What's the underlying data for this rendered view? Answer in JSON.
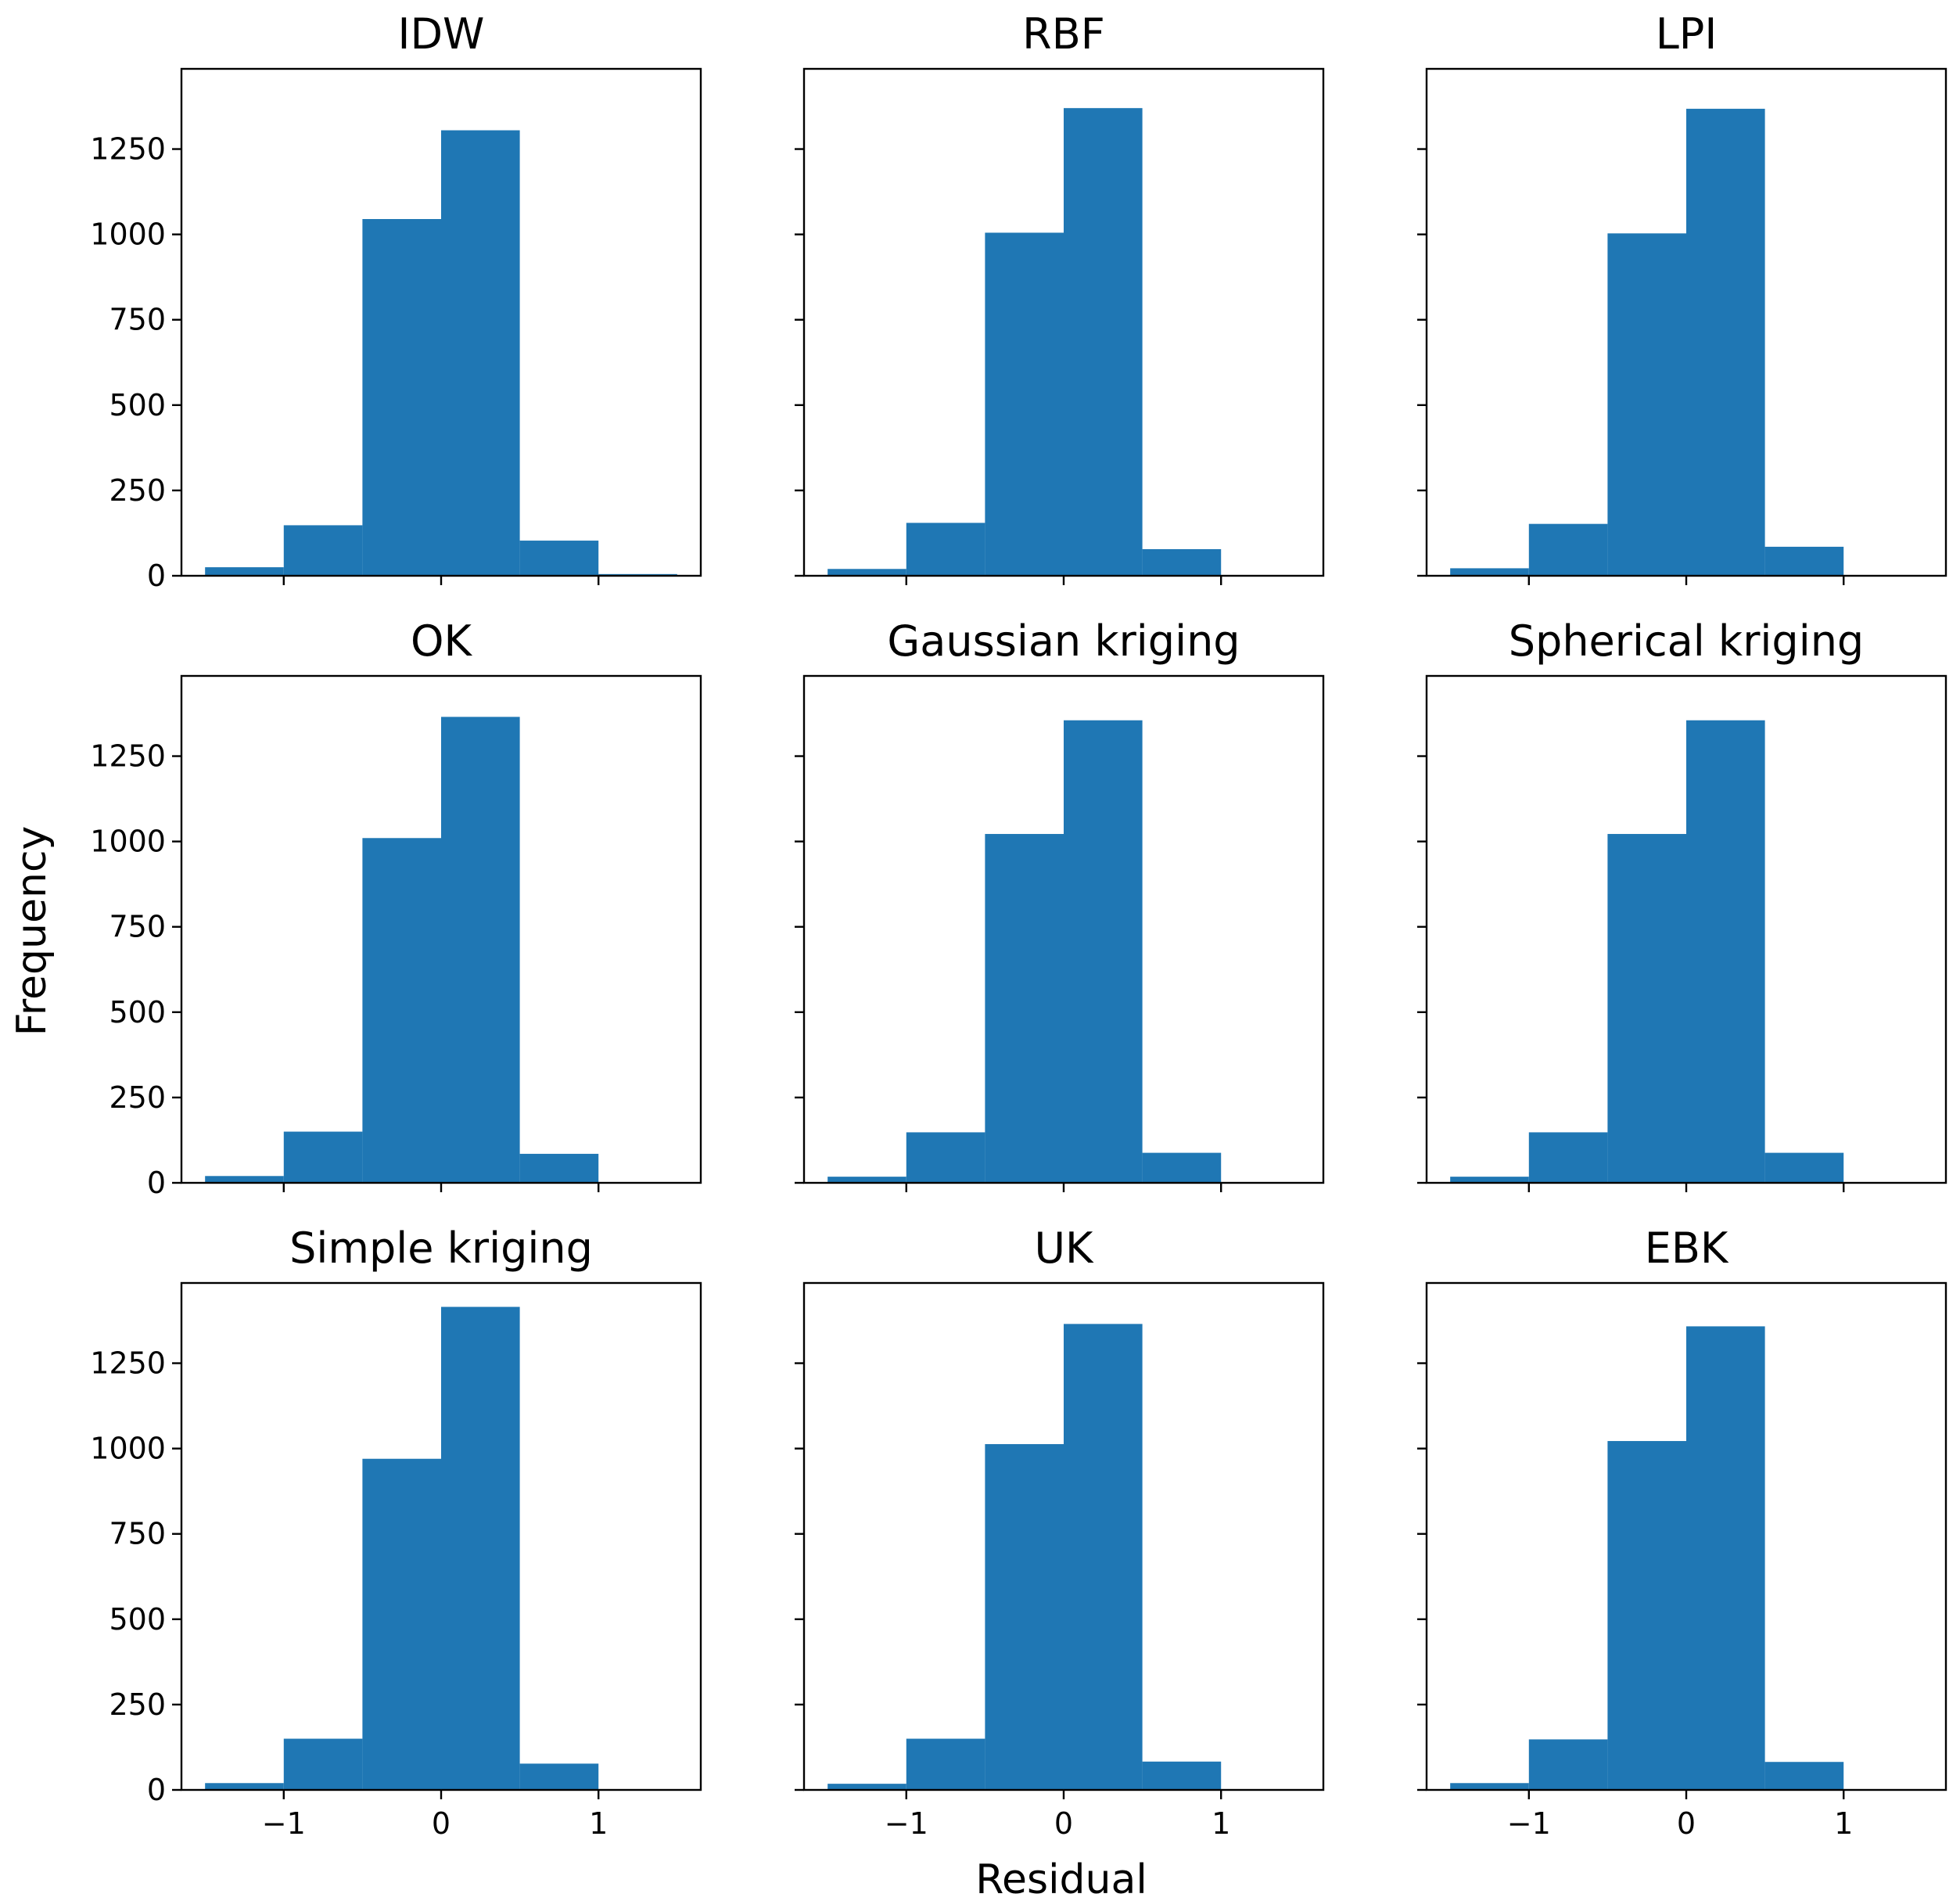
{
  "figure": {
    "ylabel": "Frequency",
    "xlabel": "Residual",
    "bar_color": "#1f77b4"
  },
  "chart_data": [
    {
      "type": "bar",
      "title": "IDW",
      "bin_edges": [
        -1.5,
        -1.0,
        -0.5,
        0.0,
        0.5,
        1.0,
        1.5
      ],
      "values": [
        25,
        148,
        1045,
        1305,
        103,
        5
      ],
      "xlim": [
        -1.65,
        1.65
      ],
      "ylim": [
        0,
        1485
      ],
      "xticks": [
        -1,
        0,
        1
      ],
      "xtick_labels": [
        "−1",
        "0",
        "1"
      ],
      "yticks": [
        0,
        250,
        500,
        750,
        1000,
        1250
      ],
      "ytick_labels": [
        "0",
        "250",
        "500",
        "750",
        "1000",
        "1250"
      ]
    },
    {
      "type": "bar",
      "title": "RBF",
      "bin_edges": [
        -1.5,
        -1.0,
        -0.5,
        0.0,
        0.5,
        1.0,
        1.5
      ],
      "values": [
        20,
        155,
        1005,
        1370,
        78,
        0
      ],
      "xlim": [
        -1.65,
        1.65
      ],
      "ylim": [
        0,
        1485
      ],
      "xticks": [
        -1,
        0,
        1
      ],
      "xtick_labels": [
        "−1",
        "0",
        "1"
      ],
      "yticks": [
        0,
        250,
        500,
        750,
        1000,
        1250
      ],
      "ytick_labels": [
        "0",
        "250",
        "500",
        "750",
        "1000",
        "1250"
      ]
    },
    {
      "type": "bar",
      "title": "LPI",
      "bin_edges": [
        -1.5,
        -1.0,
        -0.5,
        0.0,
        0.5,
        1.0,
        1.5
      ],
      "values": [
        22,
        152,
        1003,
        1368,
        85,
        0
      ],
      "xlim": [
        -1.65,
        1.65
      ],
      "ylim": [
        0,
        1485
      ],
      "xticks": [
        -1,
        0,
        1
      ],
      "xtick_labels": [
        "−1",
        "0",
        "1"
      ],
      "yticks": [
        0,
        250,
        500,
        750,
        1000,
        1250
      ],
      "ytick_labels": [
        "0",
        "250",
        "500",
        "750",
        "1000",
        "1250"
      ]
    },
    {
      "type": "bar",
      "title": "OK",
      "bin_edges": [
        -1.5,
        -1.0,
        -0.5,
        0.0,
        0.5,
        1.0,
        1.5
      ],
      "values": [
        20,
        150,
        1010,
        1365,
        85,
        0
      ],
      "xlim": [
        -1.65,
        1.65
      ],
      "ylim": [
        0,
        1485
      ],
      "xticks": [
        -1,
        0,
        1
      ],
      "xtick_labels": [
        "−1",
        "0",
        "1"
      ],
      "yticks": [
        0,
        250,
        500,
        750,
        1000,
        1250
      ],
      "ytick_labels": [
        "0",
        "250",
        "500",
        "750",
        "1000",
        "1250"
      ]
    },
    {
      "type": "bar",
      "title": "Gaussian kriging",
      "bin_edges": [
        -1.5,
        -1.0,
        -0.5,
        0.0,
        0.5,
        1.0,
        1.5
      ],
      "values": [
        18,
        148,
        1022,
        1355,
        88,
        0
      ],
      "xlim": [
        -1.65,
        1.65
      ],
      "ylim": [
        0,
        1485
      ],
      "xticks": [
        -1,
        0,
        1
      ],
      "xtick_labels": [
        "−1",
        "0",
        "1"
      ],
      "yticks": [
        0,
        250,
        500,
        750,
        1000,
        1250
      ],
      "ytick_labels": [
        "0",
        "250",
        "500",
        "750",
        "1000",
        "1250"
      ]
    },
    {
      "type": "bar",
      "title": "Spherical kriging",
      "bin_edges": [
        -1.5,
        -1.0,
        -0.5,
        0.0,
        0.5,
        1.0,
        1.5
      ],
      "values": [
        18,
        148,
        1022,
        1355,
        88,
        0
      ],
      "xlim": [
        -1.65,
        1.65
      ],
      "ylim": [
        0,
        1485
      ],
      "xticks": [
        -1,
        0,
        1
      ],
      "xtick_labels": [
        "−1",
        "0",
        "1"
      ],
      "yticks": [
        0,
        250,
        500,
        750,
        1000,
        1250
      ],
      "ytick_labels": [
        "0",
        "250",
        "500",
        "750",
        "1000",
        "1250"
      ]
    },
    {
      "type": "bar",
      "title": "Simple kriging",
      "bin_edges": [
        -1.5,
        -1.0,
        -0.5,
        0.0,
        0.5,
        1.0,
        1.5
      ],
      "values": [
        20,
        150,
        970,
        1415,
        77,
        0
      ],
      "xlim": [
        -1.65,
        1.65
      ],
      "ylim": [
        0,
        1485
      ],
      "xticks": [
        -1,
        0,
        1
      ],
      "xtick_labels": [
        "−1",
        "0",
        "1"
      ],
      "yticks": [
        0,
        250,
        500,
        750,
        1000,
        1250
      ],
      "ytick_labels": [
        "0",
        "250",
        "500",
        "750",
        "1000",
        "1250"
      ]
    },
    {
      "type": "bar",
      "title": "UK",
      "bin_edges": [
        -1.5,
        -1.0,
        -0.5,
        0.0,
        0.5,
        1.0,
        1.5
      ],
      "values": [
        18,
        150,
        1013,
        1365,
        83,
        0
      ],
      "xlim": [
        -1.65,
        1.65
      ],
      "ylim": [
        0,
        1485
      ],
      "xticks": [
        -1,
        0,
        1
      ],
      "xtick_labels": [
        "−1",
        "0",
        "1"
      ],
      "yticks": [
        0,
        250,
        500,
        750,
        1000,
        1250
      ],
      "ytick_labels": [
        "0",
        "250",
        "500",
        "750",
        "1000",
        "1250"
      ]
    },
    {
      "type": "bar",
      "title": "EBK",
      "bin_edges": [
        -1.5,
        -1.0,
        -0.5,
        0.0,
        0.5,
        1.0,
        1.5
      ],
      "values": [
        20,
        148,
        1022,
        1358,
        82,
        0
      ],
      "xlim": [
        -1.65,
        1.65
      ],
      "ylim": [
        0,
        1485
      ],
      "xticks": [
        -1,
        0,
        1
      ],
      "xtick_labels": [
        "−1",
        "0",
        "1"
      ],
      "yticks": [
        0,
        250,
        500,
        750,
        1000,
        1250
      ],
      "ytick_labels": [
        "0",
        "250",
        "500",
        "750",
        "1000",
        "1250"
      ]
    }
  ]
}
